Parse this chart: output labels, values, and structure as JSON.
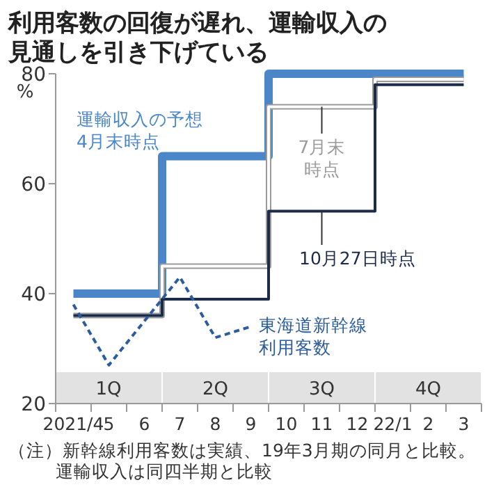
{
  "chart_data": {
    "type": "step",
    "title": "利用客数の回復が遅れ、運輸収入の見通しを引き下げている",
    "ylabel": "%",
    "categories": [
      "2021/4",
      "5",
      "6",
      "7",
      "8",
      "9",
      "10",
      "11",
      "12",
      "22/1",
      "2",
      "3"
    ],
    "series": [
      {
        "name": "運輸収入の予想4月末時点",
        "color": "#4a86c8",
        "values": [
          40,
          40,
          40,
          65,
          65,
          65,
          80,
          80,
          80,
          80,
          80,
          80
        ]
      },
      {
        "name": "7月末時点",
        "color": "#9a9a9a",
        "values": [
          36,
          36,
          36,
          45,
          45,
          45,
          74,
          74,
          74,
          79,
          79,
          79
        ]
      },
      {
        "name": "10月27日時点",
        "color": "#1c2b4a",
        "values": [
          36,
          36,
          36,
          39,
          39,
          39,
          55,
          55,
          55,
          78,
          78,
          78
        ]
      },
      {
        "name": "東海道新幹線利用客数",
        "type": "line",
        "line_style": "dashed",
        "color": "#2b5c9e",
        "values": [
          38,
          27,
          35,
          43,
          32,
          34,
          null,
          null,
          null,
          null,
          null,
          null
        ]
      }
    ],
    "ylim": [
      20,
      80
    ],
    "yticks": [
      20,
      40,
      60,
      80
    ],
    "grid": false,
    "bands": [
      {
        "axis": "x",
        "from": "2021/4",
        "to": "6",
        "label": "1Q",
        "color": "#e2e2e2"
      },
      {
        "axis": "x",
        "from": "7",
        "to": "9",
        "label": "2Q",
        "color": "#e2e2e2"
      },
      {
        "axis": "x",
        "from": "10",
        "to": "12",
        "label": "3Q",
        "color": "#e2e2e2"
      },
      {
        "axis": "x",
        "from": "22/1",
        "to": "3",
        "label": "4Q",
        "color": "#e2e2e2"
      }
    ],
    "annotations": [
      "（注）新幹線利用客数は実績、19年3月期の同月と比較。運輸収入は同四半期と比較"
    ]
  }
}
